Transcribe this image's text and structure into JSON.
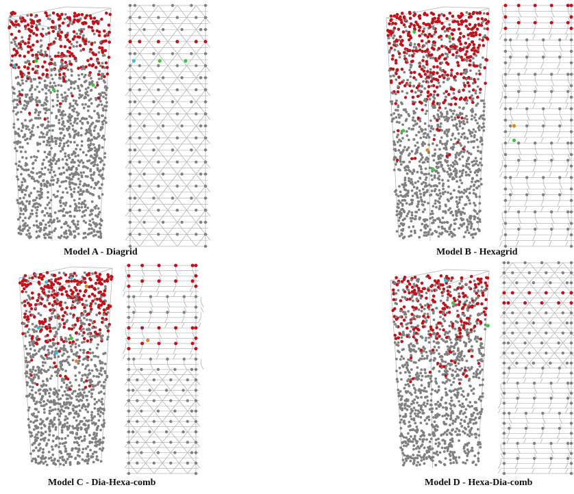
{
  "colors": {
    "node_default": "#808080",
    "member": "#b4b4b4",
    "node_yielded": "#c0121b",
    "node_green": "#3cc83c",
    "node_cyan": "#3cbcd0",
    "node_orange": "#e08a1e"
  },
  "models": [
    {
      "id": "A",
      "caption": "Model A - Diagrid",
      "facade_pattern": "diagrid"
    },
    {
      "id": "B",
      "caption": "Model B - Hexagrid",
      "facade_pattern": "hexagrid"
    },
    {
      "id": "C",
      "caption": "Model C - Dia-Hexa-comb",
      "facade_pattern": "dia-hexa"
    },
    {
      "id": "D",
      "caption": "Model D - Hexa-Dia-comb",
      "facade_pattern": "hexa-dia"
    }
  ]
}
